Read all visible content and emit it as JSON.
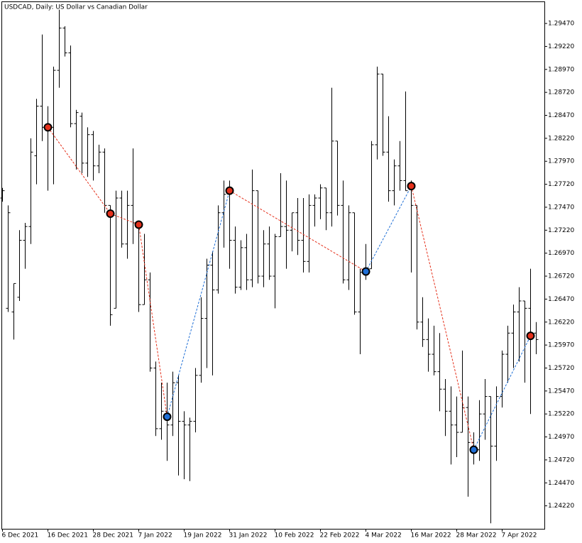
{
  "chart_data": {
    "type": "ohlc",
    "title": "USDCAD, Daily:  US Dollar vs Canadian Dollar",
    "color": "#000000",
    "categories": [
      "6 Dec 2021",
      null,
      null,
      null,
      null,
      null,
      null,
      null,
      "16 Dec 2021",
      null,
      null,
      null,
      null,
      null,
      null,
      null,
      "28 Dec 2021",
      null,
      null,
      null,
      null,
      null,
      null,
      null,
      "7 Jan 2022",
      null,
      null,
      null,
      null,
      null,
      null,
      null,
      "19 Jan 2022",
      null,
      null,
      null,
      null,
      null,
      null,
      null,
      "31 Jan 2022",
      null,
      null,
      null,
      null,
      null,
      null,
      null,
      "10 Feb 2022",
      null,
      null,
      null,
      null,
      null,
      null,
      null,
      "22 Feb 2022",
      null,
      null,
      null,
      null,
      null,
      null,
      null,
      "4 Mar 2022",
      null,
      null,
      null,
      null,
      null,
      null,
      null,
      "16 Mar 2022",
      null,
      null,
      null,
      null,
      null,
      null,
      null,
      "28 Mar 2022",
      null,
      null,
      null,
      null,
      null,
      null,
      null,
      "7 Apr 2022",
      null,
      null,
      null,
      null,
      null,
      null
    ],
    "open": [
      1.2757,
      1.2637,
      1.2633,
      1.2649,
      1.2711,
      1.2726,
      1.2803,
      1.2857,
      1.2834,
      1.2834,
      1.2896,
      1.2942,
      1.2915,
      1.2838,
      1.2846,
      1.2795,
      1.2826,
      1.2792,
      1.2807,
      1.2749,
      1.2637,
      1.2757,
      1.2707,
      1.2749,
      1.273,
      1.2641,
      1.2668,
      1.2572,
      1.2506,
      1.2525,
      1.251,
      1.2556,
      1.2514,
      1.251,
      1.2514,
      1.2564,
      1.2626,
      1.2684,
      1.2657,
      1.2741,
      1.2761,
      1.2711,
      1.266,
      1.2703,
      1.2668,
      1.2765,
      1.2672,
      1.2707,
      1.2672,
      1.2715,
      1.2726,
      1.2722,
      1.2741,
      1.2711,
      1.2688,
      1.2749,
      1.2757,
      1.2768,
      1.2741,
      1.2819,
      1.2749,
      1.2668,
      1.2741,
      1.2633,
      1.2676,
      1.268,
      1.2815,
      1.2892,
      1.2807,
      1.2765,
      1.2792,
      1.2776,
      1.2772,
      1.2749,
      1.2622,
      1.2603,
      1.2587,
      1.2568,
      1.2549,
      1.2525,
      1.251,
      1.2502,
      1.2529,
      1.2491,
      1.2483,
      1.2522,
      1.2541,
      1.2487,
      1.2541,
      1.2587,
      1.261,
      1.2633,
      1.2645,
      1.2637,
      1.261
    ],
    "high": [
      1.2768,
      1.2749,
      1.2664,
      1.2722,
      1.273,
      1.2822,
      1.2865,
      1.2935,
      1.2857,
      1.29,
      1.2962,
      1.2944,
      1.2923,
      1.2853,
      1.285,
      1.2834,
      1.283,
      1.2815,
      1.2811,
      1.2749,
      1.2765,
      1.2765,
      1.2765,
      1.2811,
      1.273,
      1.2718,
      1.2676,
      1.2579,
      1.2556,
      1.2556,
      1.2568,
      1.2564,
      1.2525,
      1.2518,
      1.2572,
      1.2649,
      1.2691,
      1.2699,
      1.2749,
      1.2776,
      1.2776,
      1.2726,
      1.2711,
      1.2718,
      1.2788,
      1.2765,
      1.2722,
      1.2726,
      1.2718,
      1.2784,
      1.2776,
      1.2741,
      1.2757,
      1.2757,
      1.2761,
      1.2761,
      1.2772,
      1.2768,
      1.2877,
      1.2819,
      1.2776,
      1.2749,
      1.2741,
      1.268,
      1.2707,
      1.2819,
      1.29,
      1.2892,
      1.2846,
      1.2799,
      1.2819,
      1.2873,
      1.2776,
      1.2749,
      1.2649,
      1.2626,
      1.2618,
      1.261,
      1.256,
      1.2552,
      1.2541,
      1.2591,
      1.2541,
      1.2502,
      1.2537,
      1.256,
      1.2541,
      1.2552,
      1.2591,
      1.2618,
      1.2641,
      1.266,
      1.2645,
      1.268,
      1.2622
    ],
    "low": [
      1.2753,
      1.2633,
      1.2603,
      1.2645,
      1.268,
      1.2707,
      1.2772,
      1.2819,
      1.2765,
      1.2772,
      1.2877,
      1.2911,
      1.2834,
      1.2788,
      1.2784,
      1.278,
      1.2776,
      1.2784,
      1.2741,
      1.2618,
      1.2637,
      1.2703,
      1.2691,
      1.2707,
      1.2633,
      1.2641,
      1.2568,
      1.2498,
      1.2494,
      1.2471,
      1.2498,
      1.2455,
      1.2451,
      1.2449,
      1.2502,
      1.2556,
      1.2572,
      1.2564,
      1.2653,
      1.2703,
      1.268,
      1.2653,
      1.2657,
      1.2657,
      1.266,
      1.2664,
      1.266,
      1.2668,
      1.2637,
      1.2715,
      1.268,
      1.2699,
      1.2695,
      1.2676,
      1.2676,
      1.2726,
      1.2734,
      1.2722,
      1.2726,
      1.2738,
      1.2664,
      1.2657,
      1.263,
      1.2587,
      1.2668,
      1.268,
      1.2799,
      1.2803,
      1.2753,
      1.2749,
      1.2765,
      1.2765,
      1.2676,
      1.2614,
      1.2595,
      1.2568,
      1.2564,
      1.2525,
      1.2498,
      1.2467,
      1.2475,
      1.2502,
      1.2432,
      1.2467,
      1.2471,
      1.2494,
      1.2403,
      1.2471,
      1.2529,
      1.2556,
      1.2572,
      1.2579,
      1.2556,
      1.2522,
      1.2587
    ],
    "close": [
      1.2765,
      1.2741,
      1.2664,
      1.2711,
      1.2726,
      1.2807,
      1.2857,
      1.2834,
      1.283,
      1.2896,
      1.2942,
      1.2915,
      1.2838,
      1.285,
      1.2795,
      1.2826,
      1.2792,
      1.2807,
      1.2749,
      1.263,
      1.2757,
      1.2707,
      1.2749,
      1.273,
      1.2641,
      1.2668,
      1.2572,
      1.2506,
      1.2525,
      1.251,
      1.2556,
      1.2514,
      1.251,
      1.2514,
      1.2564,
      1.2626,
      1.2684,
      1.2657,
      1.2741,
      1.2761,
      1.2711,
      1.266,
      1.2703,
      1.2668,
      1.2765,
      1.2672,
      1.2707,
      1.2672,
      1.2715,
      1.2726,
      1.2722,
      1.2741,
      1.2711,
      1.2688,
      1.2749,
      1.2757,
      1.2768,
      1.2741,
      1.2819,
      1.2749,
      1.2668,
      1.2741,
      1.2633,
      1.2676,
      1.268,
      1.2815,
      1.2892,
      1.2807,
      1.2765,
      1.2792,
      1.2776,
      1.2765,
      1.2749,
      1.2622,
      1.2603,
      1.2587,
      1.2568,
      1.2549,
      1.2525,
      1.251,
      1.2502,
      1.2529,
      1.2491,
      1.2483,
      1.2522,
      1.2541,
      1.2487,
      1.2541,
      1.2587,
      1.261,
      1.2633,
      1.2645,
      1.2637,
      1.261,
      1.2603
    ],
    "zigzag": {
      "values": [
        null,
        null,
        null,
        null,
        null,
        null,
        null,
        null,
        1.2834,
        null,
        null,
        null,
        null,
        null,
        null,
        null,
        null,
        null,
        null,
        1.274,
        null,
        null,
        null,
        null,
        1.2728,
        null,
        null,
        null,
        null,
        1.2519,
        null,
        null,
        null,
        null,
        null,
        null,
        null,
        null,
        null,
        null,
        1.2765,
        null,
        null,
        null,
        null,
        null,
        null,
        null,
        null,
        null,
        null,
        null,
        null,
        null,
        null,
        null,
        null,
        null,
        null,
        null,
        null,
        null,
        null,
        null,
        1.2677,
        null,
        null,
        null,
        null,
        null,
        null,
        null,
        1.277,
        null,
        null,
        null,
        null,
        null,
        null,
        null,
        null,
        null,
        null,
        1.2483,
        null,
        null,
        null,
        null,
        null,
        null,
        null,
        null,
        null,
        1.2607,
        null
      ],
      "up_color": "#1f6fd6",
      "down_color": "#e5311c"
    },
    "ylim": [
      1.2397,
      1.2971
    ],
    "yticks": [
      {
        "value": 1.2947,
        "label": "1.29470"
      },
      {
        "value": 1.2922,
        "label": "1.29220"
      },
      {
        "value": 1.2897,
        "label": "1.28970"
      },
      {
        "value": 1.2872,
        "label": "1.28720"
      },
      {
        "value": 1.2847,
        "label": "1.28470"
      },
      {
        "value": 1.2822,
        "label": "1.28220"
      },
      {
        "value": 1.2797,
        "label": "1.27970"
      },
      {
        "value": 1.2772,
        "label": "1.27720"
      },
      {
        "value": 1.2747,
        "label": "1.27470"
      },
      {
        "value": 1.2722,
        "label": "1.27220"
      },
      {
        "value": 1.2697,
        "label": "1.26970"
      },
      {
        "value": 1.2672,
        "label": "1.26720"
      },
      {
        "value": 1.2647,
        "label": "1.26470"
      },
      {
        "value": 1.2622,
        "label": "1.26220"
      },
      {
        "value": 1.2597,
        "label": "1.25970"
      },
      {
        "value": 1.2572,
        "label": "1.25720"
      },
      {
        "value": 1.2547,
        "label": "1.25470"
      },
      {
        "value": 1.2522,
        "label": "1.25220"
      },
      {
        "value": 1.2497,
        "label": "1.24970"
      },
      {
        "value": 1.2472,
        "label": "1.24720"
      },
      {
        "value": 1.2447,
        "label": "1.24470"
      },
      {
        "value": 1.2422,
        "label": "1.24220"
      }
    ],
    "grid": false
  }
}
